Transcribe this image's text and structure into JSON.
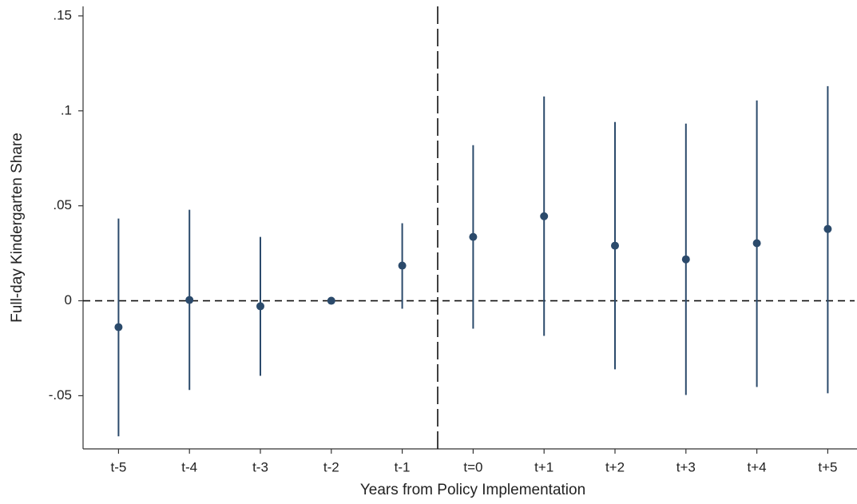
{
  "chart_data": {
    "type": "errorbar",
    "x_label": "Years from Policy Implementation",
    "y_label": "Full-day Kindergarten Share",
    "categories": [
      "t-5",
      "t-4",
      "t-3",
      "t-2",
      "t-1",
      "t=0",
      "t+1",
      "t+2",
      "t+3",
      "t+4",
      "t+5"
    ],
    "values": [
      -0.0139,
      0.0004,
      -0.0029,
      0,
      0.0185,
      0.0336,
      0.0445,
      0.029,
      0.0218,
      0.0303,
      0.0378
    ],
    "lower": [
      -0.0714,
      -0.047,
      -0.0395,
      0,
      -0.0042,
      -0.0147,
      -0.0185,
      -0.0361,
      -0.0496,
      -0.0454,
      -0.0487
    ],
    "upper": [
      0.0433,
      0.0479,
      0.0336,
      0,
      0.0408,
      0.0819,
      0.1076,
      0.0941,
      0.0933,
      0.1055,
      0.113
    ],
    "color": "#2b4a6b",
    "ylim": [
      -0.078,
      0.155
    ],
    "yticks": [
      {
        "value": -0.05,
        "label": "-.05"
      },
      0,
      {
        "value": 0.05,
        "label": ".05"
      },
      {
        "value": 0.1,
        "label": ".1"
      },
      {
        "value": 0.15,
        "label": ".15"
      }
    ],
    "hline": 0,
    "grid": false
  }
}
